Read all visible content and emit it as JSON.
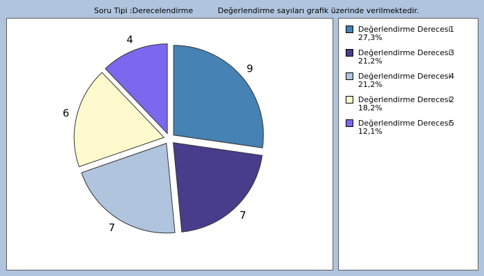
{
  "header": {
    "question_type": "Soru Tipi :Derecelendirme",
    "note": "Değerlendirme sayıları grafik üzerinde verilmektedir."
  },
  "colors": {
    "background": "#b0c4de"
  },
  "legend": {
    "items": [
      {
        "label": "Değerlendirme Derecesi",
        "num": "1",
        "pct": "27,3%",
        "color": "#4682b4"
      },
      {
        "label": "Değerlendirme Derecesi",
        "num": "3",
        "pct": "21,2%",
        "color": "#483d8b"
      },
      {
        "label": "Değerlendirme Derecesi",
        "num": "4",
        "pct": "21,2%",
        "color": "#b0c4de"
      },
      {
        "label": "Değerlendirme Derecesi",
        "num": "2",
        "pct": "18,2%",
        "color": "#fffacd"
      },
      {
        "label": "Değerlendirme Derecesi",
        "num": "5",
        "pct": "12,1%",
        "color": "#7b68ee"
      }
    ]
  },
  "chart_data": {
    "type": "pie",
    "exploded": true,
    "categories": [
      "1",
      "3",
      "4",
      "2",
      "5"
    ],
    "values": [
      9,
      7,
      7,
      6,
      4
    ],
    "percentages": [
      "27,3%",
      "21,2%",
      "21,2%",
      "18,2%",
      "12,1%"
    ],
    "colors": [
      "#4682b4",
      "#483d8b",
      "#b0c4de",
      "#fffacd",
      "#7b68ee"
    ],
    "data_labels": [
      "9",
      "7",
      "7",
      "6",
      "4"
    ],
    "legend_position": "right"
  }
}
